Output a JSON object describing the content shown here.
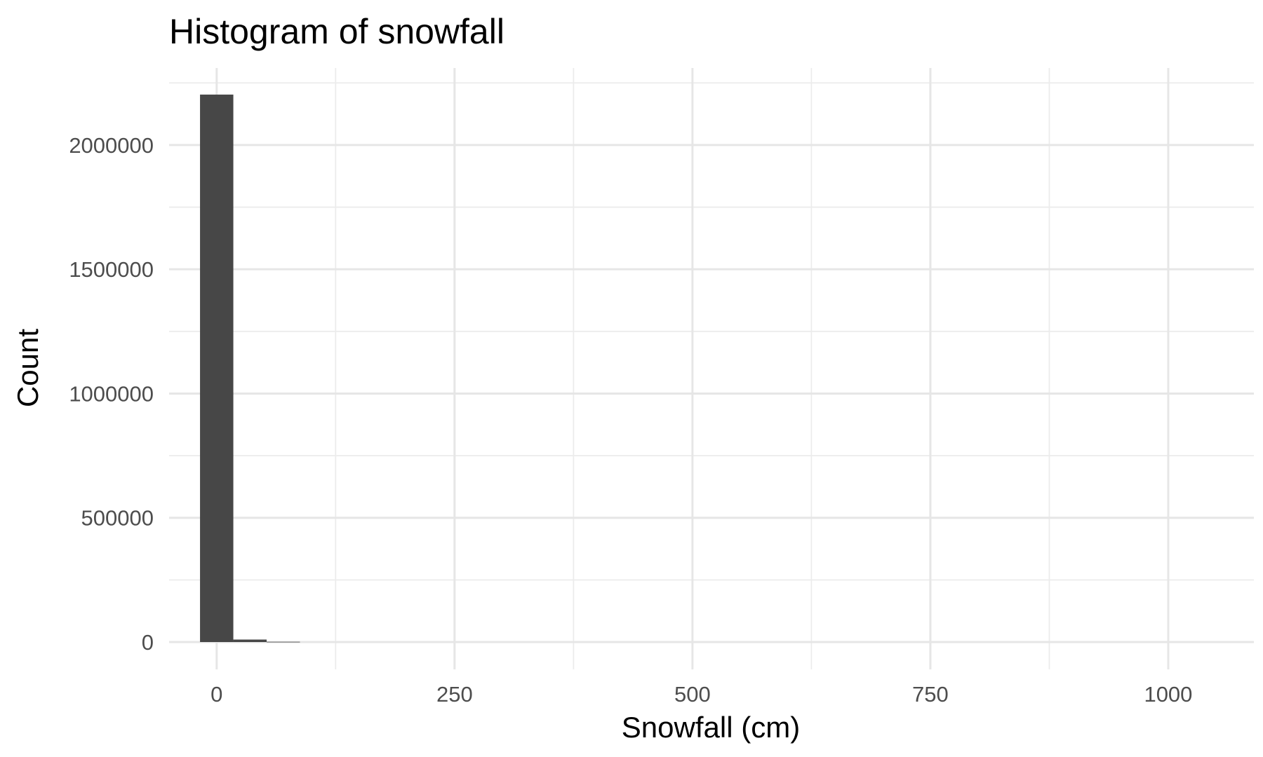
{
  "chart_data": {
    "type": "bar",
    "title": "Histogram of snowfall",
    "xlabel": "Snowfall (cm)",
    "ylabel": "Count",
    "xlim": [
      -50,
      1090
    ],
    "ylim": [
      -110000,
      2310000
    ],
    "x_ticks": [
      0,
      250,
      500,
      750,
      1000
    ],
    "x_tick_labels": [
      "0",
      "250",
      "500",
      "750",
      "1000"
    ],
    "y_ticks": [
      0,
      500000,
      1000000,
      1500000,
      2000000
    ],
    "y_tick_labels": [
      "0",
      "500000",
      "1000000",
      "1500000",
      "2000000"
    ],
    "bin_width": 35,
    "bins": [
      {
        "x_start": -17.5,
        "x_end": 17.5,
        "count": 2203000
      },
      {
        "x_start": 17.5,
        "x_end": 52.5,
        "count": 10000
      },
      {
        "x_start": 52.5,
        "x_end": 87.5,
        "count": 1000
      }
    ],
    "bar_color": "#474747",
    "grid": true,
    "theme": "minimal"
  }
}
